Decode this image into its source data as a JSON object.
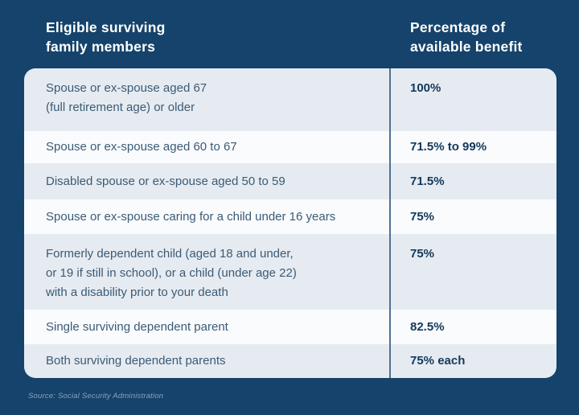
{
  "header": {
    "left_title": "Eligible surviving\nfamily members",
    "right_title": "Percentage of\navailable benefit"
  },
  "table": {
    "rows": [
      {
        "member": "Spouse or ex-spouse aged 67\n(full retirement age) or older",
        "benefit": "100%"
      },
      {
        "member": "Spouse or ex-spouse aged 60 to 67",
        "benefit": "71.5% to 99%"
      },
      {
        "member": "Disabled spouse or ex-spouse aged 50 to 59",
        "benefit": "71.5%"
      },
      {
        "member": "Spouse or ex-spouse caring for a child under 16 years",
        "benefit": "75%"
      },
      {
        "member": "Formerly dependent child (aged 18 and under,\nor 19 if still in school), or a child (under age 22)\nwith a disability prior to your death",
        "benefit": "75%"
      },
      {
        "member": "Single surviving dependent parent",
        "benefit": "82.5%"
      },
      {
        "member": "Both surviving dependent parents",
        "benefit": "75% each"
      }
    ]
  },
  "footer": {
    "source": "Source: Social Security Administration"
  },
  "colors": {
    "background_navy": "#15436b",
    "row_light": "#e6ebf1",
    "row_white": "#fafbfd",
    "divider": "#4d7191",
    "member_text": "#3a5b76",
    "benefit_text": "#12395c",
    "header_text": "#ffffff",
    "source_text": "#8aa3bb"
  },
  "chart_data": {
    "type": "table",
    "title": "",
    "columns": [
      "Eligible surviving family members",
      "Percentage of available benefit"
    ],
    "rows": [
      [
        "Spouse or ex-spouse aged 67 (full retirement age) or older",
        "100%"
      ],
      [
        "Spouse or ex-spouse aged 60 to 67",
        "71.5% to 99%"
      ],
      [
        "Disabled spouse or ex-spouse aged 50 to 59",
        "71.5%"
      ],
      [
        "Spouse or ex-spouse caring for a child under 16 years",
        "75%"
      ],
      [
        "Formerly dependent child (aged 18 and under, or 19 if still in school), or a child (under age 22) with a disability prior to your death",
        "75%"
      ],
      [
        "Single surviving dependent parent",
        "82.5%"
      ],
      [
        "Both surviving dependent parents",
        "75% each"
      ]
    ],
    "source": "Source: Social Security Administration"
  }
}
